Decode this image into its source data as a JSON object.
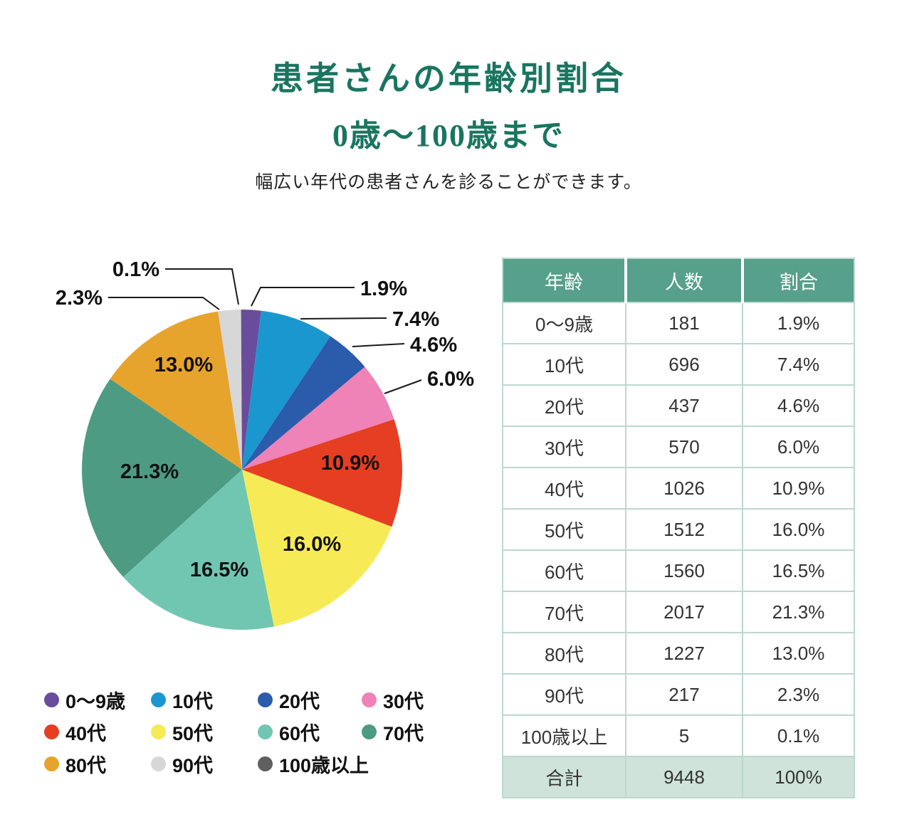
{
  "header": {
    "title": "患者さんの年齢別割合",
    "subtitle": "0歳～100歳まで",
    "description": "幅広い年代の患者さんを診ることができます。"
  },
  "chart_data": {
    "type": "pie",
    "title": "患者さんの年齢別割合 0歳～100歳まで",
    "legend_position": "bottom-left",
    "start_angle_deg": 0,
    "direction": "clockwise",
    "slices": [
      {
        "label": "0～9歳",
        "value": 1.9,
        "pct_label": "1.9%",
        "color": "#6a4c9d"
      },
      {
        "label": "10代",
        "value": 7.4,
        "pct_label": "7.4%",
        "color": "#1b97cf"
      },
      {
        "label": "20代",
        "value": 4.6,
        "pct_label": "4.6%",
        "color": "#2a5cab"
      },
      {
        "label": "30代",
        "value": 6.0,
        "pct_label": "6.0%",
        "color": "#ef82b6"
      },
      {
        "label": "40代",
        "value": 10.9,
        "pct_label": "10.9%",
        "color": "#e63e23"
      },
      {
        "label": "50代",
        "value": 16.0,
        "pct_label": "16.0%",
        "color": "#f6eb57"
      },
      {
        "label": "60代",
        "value": 16.5,
        "pct_label": "16.5%",
        "color": "#71c6b2"
      },
      {
        "label": "70代",
        "value": 21.3,
        "pct_label": "21.3%",
        "color": "#4e9b84"
      },
      {
        "label": "80代",
        "value": 13.0,
        "pct_label": "13.0%",
        "color": "#e7a42c"
      },
      {
        "label": "90代",
        "value": 2.3,
        "pct_label": "2.3%",
        "color": "#d7d7d7"
      },
      {
        "label": "100歳以上",
        "value": 0.1,
        "pct_label": "0.1%",
        "color": "#5f5f5f"
      }
    ]
  },
  "table": {
    "headers": [
      "年齢",
      "人数",
      "割合"
    ],
    "rows": [
      [
        "0～9歳",
        "181",
        "1.9%"
      ],
      [
        "10代",
        "696",
        "7.4%"
      ],
      [
        "20代",
        "437",
        "4.6%"
      ],
      [
        "30代",
        "570",
        "6.0%"
      ],
      [
        "40代",
        "1026",
        "10.9%"
      ],
      [
        "50代",
        "1512",
        "16.0%"
      ],
      [
        "60代",
        "1560",
        "16.5%"
      ],
      [
        "70代",
        "2017",
        "21.3%"
      ],
      [
        "80代",
        "1227",
        "13.0%"
      ],
      [
        "90代",
        "217",
        "2.3%"
      ],
      [
        "100歳以上",
        "5",
        "0.1%"
      ]
    ],
    "total_row": [
      "合計",
      "9448",
      "100%"
    ]
  },
  "colors": {
    "title_green": "#1a7560",
    "table_header_bg": "#57a08b",
    "table_total_bg": "#cfe3da",
    "table_border": "#bdd8ce",
    "callout_line": "#1a1a1a"
  }
}
